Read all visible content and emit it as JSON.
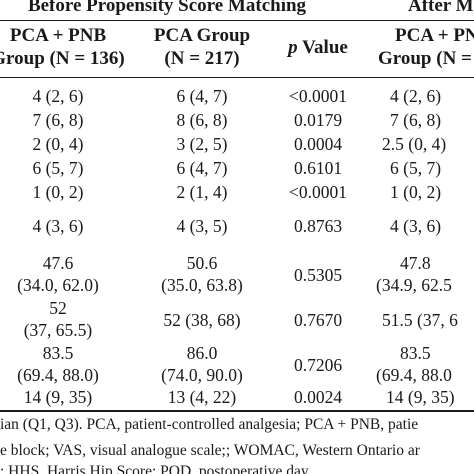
{
  "header": {
    "group_before": "Before Propensity Score Matching",
    "group_after": "After M",
    "col1_line1": "PCA + PNB",
    "col1_line2": "Group (N = 136)",
    "col2_line1": "PCA Group",
    "col2_line2": "(N = 217)",
    "col3_p": "p",
    "col3_value": "Value",
    "col4_line1": "PCA + PNB",
    "col4_line2": "Group (N ="
  },
  "rows": [
    {
      "c1": "4 (2, 6)",
      "c2": "6 (4, 7)",
      "p": "<0.0001",
      "c4": "4 (2, 6)"
    },
    {
      "c1": "7 (6, 8)",
      "c2": "8 (6, 8)",
      "p": "0.0179",
      "c4": "7 (6, 8)"
    },
    {
      "c1": "2 (0, 4)",
      "c2": "3 (2, 5)",
      "p": "0.0004",
      "c4": "2.5 (0, 4)"
    },
    {
      "c1": "6 (5, 7)",
      "c2": "6 (4, 7)",
      "p": "0.6101",
      "c4": "6 (5, 7)"
    },
    {
      "c1": "1 (0, 2)",
      "c2": "2 (1, 4)",
      "p": "<0.0001",
      "c4": "1 (0, 2)"
    },
    {
      "c1": "4 (3, 6)",
      "c2": "4 (3, 5)",
      "p": "0.8763",
      "c4": "4 (3, 6)"
    }
  ],
  "tall_rows": [
    {
      "c1a": "47.6",
      "c1b": "(34.0, 62.0)",
      "c2a": "50.6",
      "c2b": "(35.0, 63.8)",
      "p": "0.5305",
      "c4a": "47.8",
      "c4b": "(34.9, 62.5"
    },
    {
      "c1a": "52",
      "c1b": "(37, 65.5)",
      "c2": "52 (38, 68)",
      "p": "0.7670",
      "c4": "51.5 (37, 6"
    },
    {
      "c1a": "83.5",
      "c1b": "(69.4, 88.0)",
      "c2a": "86.0",
      "c2b": "(74.0, 90.0)",
      "p": "0.7206",
      "c4a": "83.5",
      "c4b": "(69.4, 88.0"
    }
  ],
  "last_row": {
    "c1": "14 (9, 35)",
    "c2": "13 (4, 22)",
    "p": "0.0024",
    "c4": "14 (9, 35)"
  },
  "footnote": {
    "line1": "ian (Q1, Q3). PCA, patient-controlled analgesia; PCA + PNB, patie",
    "line2": "e block; VAS, visual analogue scale;; WOMAC, Western Ontario ar",
    "line3": "; HHS, Harris Hip Score; POD, postoperative day."
  }
}
